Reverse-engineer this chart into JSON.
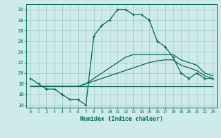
{
  "xlabel": "Humidex (Indice chaleur)",
  "bg_color": "#ceeaea",
  "grid_color": "#a0cccc",
  "line_color": "#006655",
  "xlim": [
    -0.5,
    23.5
  ],
  "ylim": [
    13.5,
    33.0
  ],
  "yticks": [
    14,
    16,
    18,
    20,
    22,
    24,
    26,
    28,
    30,
    32
  ],
  "xticks": [
    0,
    1,
    2,
    3,
    4,
    5,
    6,
    7,
    8,
    9,
    10,
    11,
    12,
    13,
    14,
    15,
    16,
    17,
    18,
    19,
    20,
    21,
    22,
    23
  ],
  "series1_x": [
    0,
    1,
    2,
    3,
    4,
    5,
    6,
    7,
    8,
    9,
    10,
    11,
    12,
    13,
    14,
    15,
    16,
    17,
    18,
    19,
    20,
    21,
    22,
    23
  ],
  "series1_y": [
    19,
    18,
    17,
    17,
    16,
    15,
    15,
    14,
    27,
    29,
    30,
    32,
    32,
    31,
    31,
    30,
    26,
    25,
    23,
    20,
    19,
    20,
    19,
    19
  ],
  "series2_x": [
    0,
    1,
    2,
    3,
    4,
    5,
    6,
    7,
    8,
    9,
    10,
    11,
    12,
    13,
    14,
    15,
    16,
    17,
    18,
    19,
    20,
    21,
    22,
    23
  ],
  "series2_y": [
    17.5,
    17.5,
    17.5,
    17.5,
    17.5,
    17.5,
    17.5,
    17.5,
    17.5,
    17.5,
    17.5,
    17.5,
    17.5,
    17.5,
    17.5,
    17.5,
    17.5,
    17.5,
    17.5,
    17.5,
    17.5,
    17.5,
    17.5,
    17.5
  ],
  "series3_x": [
    0,
    1,
    2,
    3,
    4,
    5,
    6,
    7,
    8,
    9,
    10,
    11,
    12,
    13,
    14,
    15,
    16,
    17,
    18,
    19,
    20,
    21,
    22,
    23
  ],
  "series3_y": [
    17.5,
    17.5,
    17.5,
    17.5,
    17.5,
    17.5,
    17.5,
    18,
    18.5,
    19,
    19.5,
    20,
    20.5,
    21,
    21.5,
    22,
    22.3,
    22.5,
    22.5,
    21.5,
    21,
    20.5,
    19.5,
    19
  ],
  "series4_x": [
    0,
    1,
    2,
    3,
    4,
    5,
    6,
    7,
    8,
    9,
    10,
    11,
    12,
    13,
    14,
    15,
    16,
    17,
    18,
    19,
    20,
    21,
    22,
    23
  ],
  "series4_y": [
    17.5,
    17.5,
    17.5,
    17.5,
    17.5,
    17.5,
    17.5,
    18,
    19,
    20,
    21,
    22,
    23,
    23.5,
    23.5,
    23.5,
    23.5,
    23.5,
    23.5,
    22.5,
    22,
    21.5,
    20,
    19.5
  ]
}
